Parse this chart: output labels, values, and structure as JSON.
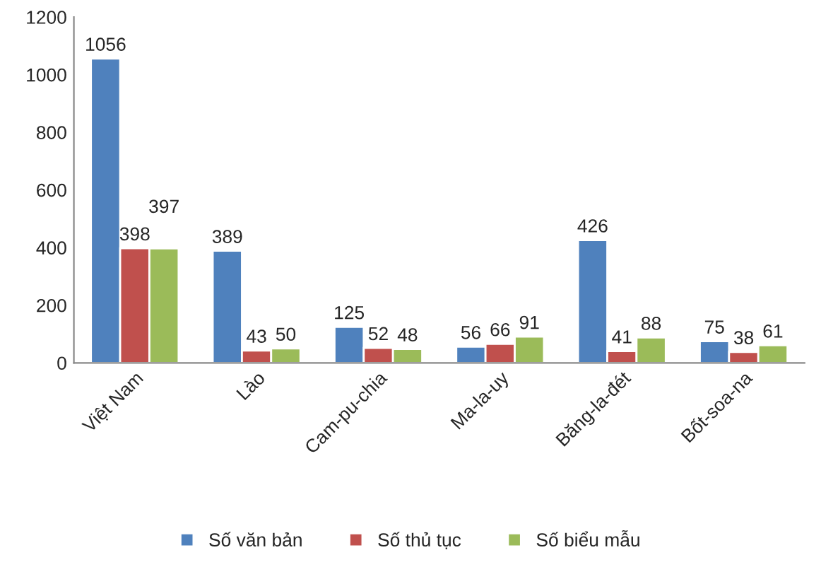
{
  "chart_data": {
    "type": "bar",
    "categories": [
      "Việt Nam",
      "Lào",
      "Cam-pu-chia",
      "Ma-la-uy",
      "Băng-la-đét",
      "Bốt-soa-na"
    ],
    "series": [
      {
        "name": "Số văn bản",
        "color": "#4f81bd",
        "values": [
          1056,
          389,
          125,
          56,
          426,
          75
        ]
      },
      {
        "name": "Số thủ tục",
        "color": "#c0504d",
        "values": [
          398,
          43,
          52,
          66,
          41,
          38
        ]
      },
      {
        "name": "Số biểu mẫu",
        "color": "#9bbb59",
        "values": [
          397,
          50,
          48,
          91,
          88,
          61
        ]
      }
    ],
    "ylim": [
      0,
      1200
    ],
    "yticks": [
      0,
      200,
      400,
      600,
      800,
      1000,
      1200
    ],
    "data_labels": true,
    "grid": false,
    "legend": "bottom"
  }
}
